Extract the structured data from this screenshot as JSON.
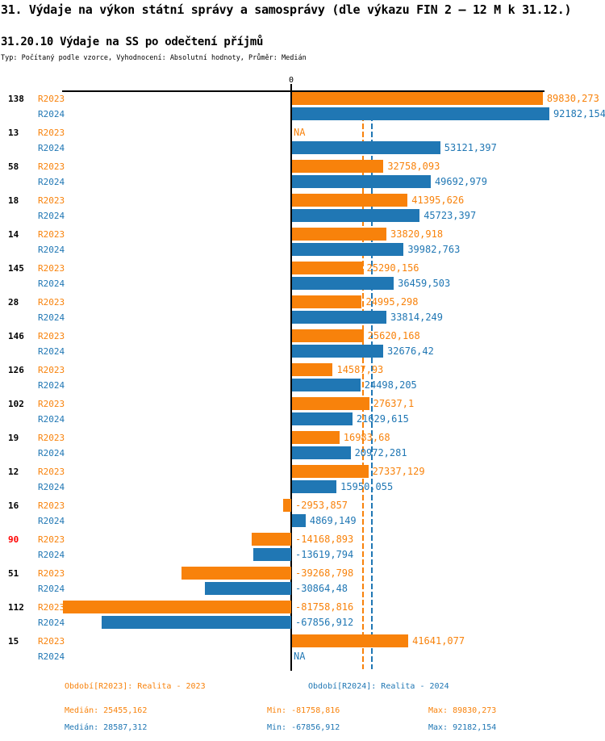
{
  "title": "31. Výdaje na výkon státní správy a samosprávy (dle výkazu FIN 2 – 12 M k 31.12.)",
  "subtitle": "31.20.10 Výdaje na SS po odečtení příjmů",
  "type_line": "Typ: Počítaný podle vzorce, Vyhodnocení: Absolutní hodnoty, Průměr: Medián",
  "colors": {
    "r2023": "#f8820b",
    "r2024": "#2077b4",
    "highlight": "#ff0000",
    "axis": "#000000"
  },
  "chart_data": {
    "type": "bar",
    "orientation": "horizontal",
    "zero_label": "0",
    "x_axis": {
      "xmin": -81758.816,
      "xmax": 92182.154,
      "grid": false
    },
    "legend_position": "bottom",
    "series": [
      {
        "id": "R2023",
        "label": "R2023",
        "period": "Realita - 2023",
        "median": 25455.162
      },
      {
        "id": "R2024",
        "label": "R2024",
        "period": "Realita - 2024",
        "median": 28587.312
      }
    ],
    "rows": [
      {
        "category": "138",
        "highlight": false,
        "values": {
          "R2023": 89830.273,
          "R2024": 92182.154
        },
        "labels": {
          "R2023": "89830,273",
          "R2024": "92182,154"
        }
      },
      {
        "category": "13",
        "highlight": false,
        "values": {
          "R2023": null,
          "R2024": 53121.397
        },
        "labels": {
          "R2023": "NA",
          "R2024": "53121,397"
        }
      },
      {
        "category": "58",
        "highlight": false,
        "values": {
          "R2023": 32758.093,
          "R2024": 49692.979
        },
        "labels": {
          "R2023": "32758,093",
          "R2024": "49692,979"
        }
      },
      {
        "category": "18",
        "highlight": false,
        "values": {
          "R2023": 41395.626,
          "R2024": 45723.397
        },
        "labels": {
          "R2023": "41395,626",
          "R2024": "45723,397"
        }
      },
      {
        "category": "14",
        "highlight": false,
        "values": {
          "R2023": 33820.918,
          "R2024": 39982.763
        },
        "labels": {
          "R2023": "33820,918",
          "R2024": "39982,763"
        }
      },
      {
        "category": "145",
        "highlight": false,
        "values": {
          "R2023": 25290.156,
          "R2024": 36459.503
        },
        "labels": {
          "R2023": "25290,156",
          "R2024": "36459,503"
        }
      },
      {
        "category": "28",
        "highlight": false,
        "values": {
          "R2023": 24995.298,
          "R2024": 33814.249
        },
        "labels": {
          "R2023": "24995,298",
          "R2024": "33814,249"
        }
      },
      {
        "category": "146",
        "highlight": false,
        "values": {
          "R2023": 25620.168,
          "R2024": 32676.42
        },
        "labels": {
          "R2023": "25620,168",
          "R2024": "32676,42"
        }
      },
      {
        "category": "126",
        "highlight": false,
        "values": {
          "R2023": 14587.93,
          "R2024": 24498.205
        },
        "labels": {
          "R2023": "14587,93",
          "R2024": "24498,205"
        }
      },
      {
        "category": "102",
        "highlight": false,
        "values": {
          "R2023": 27637.1,
          "R2024": 21629.615
        },
        "labels": {
          "R2023": "27637,1",
          "R2024": "21629,615"
        }
      },
      {
        "category": "19",
        "highlight": false,
        "values": {
          "R2023": 16983.68,
          "R2024": 20972.281
        },
        "labels": {
          "R2023": "16983,68",
          "R2024": "20972,281"
        }
      },
      {
        "category": "12",
        "highlight": false,
        "values": {
          "R2023": 27337.129,
          "R2024": 15950.055
        },
        "labels": {
          "R2023": "27337,129",
          "R2024": "15950,055"
        }
      },
      {
        "category": "16",
        "highlight": false,
        "values": {
          "R2023": -2953.857,
          "R2024": 4869.149
        },
        "labels": {
          "R2023": "-2953,857",
          "R2024": "4869,149"
        }
      },
      {
        "category": "90",
        "highlight": true,
        "values": {
          "R2023": -14168.893,
          "R2024": -13619.794
        },
        "labels": {
          "R2023": "-14168,893",
          "R2024": "-13619,794"
        }
      },
      {
        "category": "51",
        "highlight": false,
        "values": {
          "R2023": -39268.798,
          "R2024": -30864.48
        },
        "labels": {
          "R2023": "-39268,798",
          "R2024": "-30864,48"
        }
      },
      {
        "category": "112",
        "highlight": false,
        "values": {
          "R2023": -81758.816,
          "R2024": -67856.912
        },
        "labels": {
          "R2023": "-81758,816",
          "R2024": "-67856,912"
        }
      },
      {
        "category": "15",
        "highlight": false,
        "values": {
          "R2023": 41641.077,
          "R2024": null
        },
        "labels": {
          "R2023": "41641,077",
          "R2024": "NA"
        }
      }
    ]
  },
  "footer": {
    "period_2023": "Období[R2023]: Realita - 2023",
    "period_2024": "Období[R2024]: Realita - 2024",
    "stats_2023": {
      "median": "Medián: 25455,162",
      "min": "Min: -81758,816",
      "max": "Max: 89830,273"
    },
    "stats_2024": {
      "median": "Medián: 28587,312",
      "min": "Min: -67856,912",
      "max": "Max: 92182,154"
    }
  }
}
